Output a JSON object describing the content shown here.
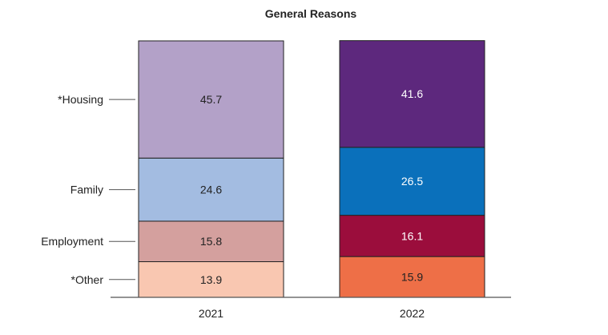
{
  "chart_data": {
    "type": "bar",
    "stacked": true,
    "title": "General Reasons",
    "categories": [
      "2021",
      "2022"
    ],
    "series": [
      {
        "name": "*Other",
        "values": [
          13.9,
          15.9
        ],
        "colors": [
          "#F9C7B1",
          "#EE6F47"
        ]
      },
      {
        "name": "Employment",
        "values": [
          15.8,
          16.1
        ],
        "colors": [
          "#D4A09E",
          "#9B0D3C"
        ]
      },
      {
        "name": "Family",
        "values": [
          24.6,
          26.5
        ],
        "colors": [
          "#A3BCE1",
          "#0A70BB"
        ]
      },
      {
        "name": "*Housing",
        "values": [
          45.7,
          41.6
        ],
        "colors": [
          "#B3A1C8",
          "#5D287D"
        ]
      }
    ],
    "value_label_colors": [
      [
        "#222222",
        "#222222"
      ],
      [
        "#222222",
        "#ffffff"
      ],
      [
        "#222222",
        "#ffffff"
      ],
      [
        "#222222",
        "#ffffff"
      ]
    ],
    "xlabel": "",
    "ylabel": "",
    "grid": false,
    "legend": "left",
    "ylim": [
      0,
      100
    ]
  }
}
